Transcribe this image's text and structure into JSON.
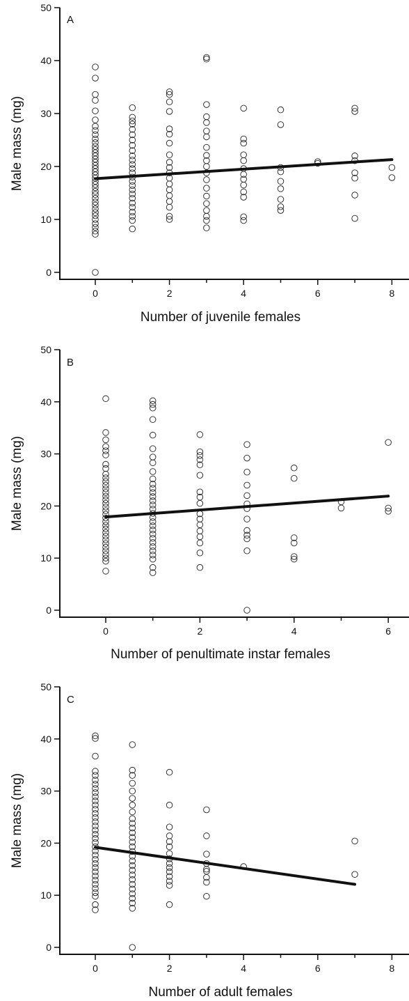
{
  "chart_data": [
    {
      "type": "scatter",
      "panel_label": "A",
      "xlabel": "Number of juvenile females",
      "ylabel": "Male mass (mg)",
      "xlim": [
        -1,
        8.5
      ],
      "ylim": [
        -1,
        50
      ],
      "xticks": [
        0,
        2,
        4,
        6,
        8
      ],
      "yticks": [
        0,
        10,
        20,
        30,
        40,
        50
      ],
      "grid": false,
      "points": [
        [
          0,
          0
        ],
        [
          0,
          7.2
        ],
        [
          0,
          7.8
        ],
        [
          0,
          8.5
        ],
        [
          0,
          9.2
        ],
        [
          0,
          10
        ],
        [
          0,
          10.7
        ],
        [
          0,
          11.3
        ],
        [
          0,
          12
        ],
        [
          0,
          12.7
        ],
        [
          0,
          13.3
        ],
        [
          0,
          14
        ],
        [
          0,
          14.7
        ],
        [
          0,
          15.3
        ],
        [
          0,
          16
        ],
        [
          0,
          16.6
        ],
        [
          0,
          17.2
        ],
        [
          0,
          17.8
        ],
        [
          0,
          18.4
        ],
        [
          0,
          19
        ],
        [
          0,
          19.6
        ],
        [
          0,
          20.2
        ],
        [
          0,
          20.8
        ],
        [
          0,
          21.4
        ],
        [
          0,
          22
        ],
        [
          0,
          22.6
        ],
        [
          0,
          23.2
        ],
        [
          0,
          23.8
        ],
        [
          0,
          24.5
        ],
        [
          0,
          25.2
        ],
        [
          0,
          26
        ],
        [
          0,
          26.8
        ],
        [
          0,
          27.6
        ],
        [
          0,
          28.8
        ],
        [
          0,
          30.5
        ],
        [
          0,
          32.5
        ],
        [
          0,
          33.6
        ],
        [
          0,
          36.7
        ],
        [
          0,
          38.8
        ],
        [
          1,
          8.2
        ],
        [
          1,
          9.8
        ],
        [
          1,
          10.6
        ],
        [
          1,
          11.4
        ],
        [
          1,
          12.3
        ],
        [
          1,
          13.1
        ],
        [
          1,
          14
        ],
        [
          1,
          14.8
        ],
        [
          1,
          15.6
        ],
        [
          1,
          16.4
        ],
        [
          1,
          17.2
        ],
        [
          1,
          18
        ],
        [
          1,
          18.8
        ],
        [
          1,
          19.6
        ],
        [
          1,
          20.4
        ],
        [
          1,
          21.2
        ],
        [
          1,
          22
        ],
        [
          1,
          23
        ],
        [
          1,
          24
        ],
        [
          1,
          25
        ],
        [
          1,
          26
        ],
        [
          1,
          27
        ],
        [
          1,
          28
        ],
        [
          1,
          28.6
        ],
        [
          1,
          29.3
        ],
        [
          1,
          31.1
        ],
        [
          2,
          10
        ],
        [
          2,
          10.6
        ],
        [
          2,
          12.3
        ],
        [
          2,
          13.4
        ],
        [
          2,
          14.5
        ],
        [
          2,
          15.6
        ],
        [
          2,
          16.7
        ],
        [
          2,
          17.8
        ],
        [
          2,
          18.8
        ],
        [
          2,
          19.8
        ],
        [
          2,
          20.8
        ],
        [
          2,
          22.2
        ],
        [
          2,
          24.4
        ],
        [
          2,
          26.1
        ],
        [
          2,
          27.1
        ],
        [
          2,
          30.4
        ],
        [
          2,
          32.2
        ],
        [
          2,
          33.6
        ],
        [
          2,
          34.1
        ],
        [
          3,
          8.4
        ],
        [
          3,
          9.8
        ],
        [
          3,
          10.6
        ],
        [
          3,
          11.7
        ],
        [
          3,
          13
        ],
        [
          3,
          14.4
        ],
        [
          3,
          15.9
        ],
        [
          3,
          17.5
        ],
        [
          3,
          18.8
        ],
        [
          3,
          20
        ],
        [
          3,
          21.1
        ],
        [
          3,
          22.1
        ],
        [
          3,
          23.6
        ],
        [
          3,
          25.6
        ],
        [
          3,
          26.7
        ],
        [
          3,
          28.3
        ],
        [
          3,
          29.4
        ],
        [
          3,
          31.7
        ],
        [
          3,
          40.3
        ],
        [
          3,
          40.6
        ],
        [
          4,
          9.8
        ],
        [
          4,
          10.5
        ],
        [
          4,
          14.2
        ],
        [
          4,
          15.2
        ],
        [
          4,
          16.5
        ],
        [
          4,
          17.6
        ],
        [
          4,
          18.5
        ],
        [
          4,
          19.6
        ],
        [
          4,
          21.1
        ],
        [
          4,
          22.2
        ],
        [
          4,
          24.4
        ],
        [
          4,
          25.2
        ],
        [
          4,
          31
        ],
        [
          5,
          11.7
        ],
        [
          5,
          12.4
        ],
        [
          5,
          13.8
        ],
        [
          5,
          15.8
        ],
        [
          5,
          17.2
        ],
        [
          5,
          19
        ],
        [
          5,
          19.8
        ],
        [
          5,
          27.9
        ],
        [
          5,
          30.7
        ],
        [
          6,
          20.6
        ],
        [
          6,
          20.9
        ],
        [
          7,
          10.2
        ],
        [
          7,
          14.6
        ],
        [
          7,
          17.8
        ],
        [
          7,
          18.8
        ],
        [
          7,
          21.1
        ],
        [
          7,
          22
        ],
        [
          7,
          30.4
        ],
        [
          7,
          31
        ],
        [
          8,
          17.9
        ],
        [
          8,
          19.8
        ]
      ],
      "fit": {
        "x": [
          0,
          8
        ],
        "y": [
          17.7,
          21.3
        ]
      }
    },
    {
      "type": "scatter",
      "panel_label": "B",
      "xlabel": "Number of penultimate instar females",
      "ylabel": "Male mass (mg)",
      "xlim": [
        -1,
        6.5
      ],
      "ylim": [
        -1,
        50
      ],
      "xticks": [
        0,
        2,
        4,
        6
      ],
      "yticks": [
        0,
        10,
        20,
        30,
        40,
        50
      ],
      "grid": false,
      "points": [
        [
          0,
          7.5
        ],
        [
          0,
          9.4
        ],
        [
          0,
          10
        ],
        [
          0,
          10.7
        ],
        [
          0,
          11.4
        ],
        [
          0,
          12.1
        ],
        [
          0,
          12.8
        ],
        [
          0,
          13.5
        ],
        [
          0,
          14.2
        ],
        [
          0,
          14.9
        ],
        [
          0,
          15.6
        ],
        [
          0,
          16.3
        ],
        [
          0,
          17
        ],
        [
          0,
          17.7
        ],
        [
          0,
          18.4
        ],
        [
          0,
          19.1
        ],
        [
          0,
          19.8
        ],
        [
          0,
          20.5
        ],
        [
          0,
          21.2
        ],
        [
          0,
          21.9
        ],
        [
          0,
          22.6
        ],
        [
          0,
          23.3
        ],
        [
          0,
          24
        ],
        [
          0,
          24.7
        ],
        [
          0,
          25.4
        ],
        [
          0,
          26.1
        ],
        [
          0,
          27.2
        ],
        [
          0,
          28
        ],
        [
          0,
          29.8
        ],
        [
          0,
          30.6
        ],
        [
          0,
          31.4
        ],
        [
          0,
          32.7
        ],
        [
          0,
          34.1
        ],
        [
          0,
          40.6
        ],
        [
          1,
          7.2
        ],
        [
          1,
          8.2
        ],
        [
          1,
          9.8
        ],
        [
          1,
          10.6
        ],
        [
          1,
          11.4
        ],
        [
          1,
          12.2
        ],
        [
          1,
          13
        ],
        [
          1,
          13.8
        ],
        [
          1,
          14.6
        ],
        [
          1,
          15.4
        ],
        [
          1,
          16.2
        ],
        [
          1,
          17
        ],
        [
          1,
          17.8
        ],
        [
          1,
          18.6
        ],
        [
          1,
          19.4
        ],
        [
          1,
          20.2
        ],
        [
          1,
          21
        ],
        [
          1,
          21.8
        ],
        [
          1,
          22.6
        ],
        [
          1,
          23.4
        ],
        [
          1,
          24.2
        ],
        [
          1,
          25.2
        ],
        [
          1,
          26.6
        ],
        [
          1,
          28.3
        ],
        [
          1,
          29.4
        ],
        [
          1,
          31
        ],
        [
          1,
          33.6
        ],
        [
          1,
          36.6
        ],
        [
          1,
          38.8
        ],
        [
          1,
          39.5
        ],
        [
          1,
          40.2
        ],
        [
          2,
          8.2
        ],
        [
          2,
          11
        ],
        [
          2,
          12.9
        ],
        [
          2,
          14.1
        ],
        [
          2,
          15.2
        ],
        [
          2,
          16.4
        ],
        [
          2,
          17.5
        ],
        [
          2,
          18.5
        ],
        [
          2,
          20.5
        ],
        [
          2,
          21.7
        ],
        [
          2,
          22.7
        ],
        [
          2,
          25.9
        ],
        [
          2,
          27.9
        ],
        [
          2,
          28.9
        ],
        [
          2,
          29.7
        ],
        [
          2,
          30.4
        ],
        [
          2,
          33.7
        ],
        [
          3,
          0
        ],
        [
          3,
          11.4
        ],
        [
          3,
          13.7
        ],
        [
          3,
          14.4
        ],
        [
          3,
          15.3
        ],
        [
          3,
          17.5
        ],
        [
          3,
          19.5
        ],
        [
          3,
          20.4
        ],
        [
          3,
          22
        ],
        [
          3,
          24
        ],
        [
          3,
          26.5
        ],
        [
          3,
          29.2
        ],
        [
          3,
          31.8
        ],
        [
          4,
          9.8
        ],
        [
          4,
          10.3
        ],
        [
          4,
          12.9
        ],
        [
          4,
          13.9
        ],
        [
          4,
          25.3
        ],
        [
          4,
          27.3
        ],
        [
          5,
          19.6
        ],
        [
          5,
          20.8
        ],
        [
          6,
          19
        ],
        [
          6,
          19.6
        ],
        [
          6,
          32.2
        ]
      ],
      "fit": {
        "x": [
          0,
          6
        ],
        "y": [
          17.9,
          21.9
        ]
      }
    },
    {
      "type": "scatter",
      "panel_label": "C",
      "xlabel": "Number of adult females",
      "ylabel": "Male mass (mg)",
      "xlim": [
        -1,
        8.5
      ],
      "ylim": [
        -1,
        50
      ],
      "xticks": [
        0,
        2,
        4,
        6,
        8
      ],
      "yticks": [
        0,
        10,
        20,
        30,
        40,
        50
      ],
      "grid": false,
      "points": [
        [
          0,
          7.2
        ],
        [
          0,
          8.2
        ],
        [
          0,
          9.8
        ],
        [
          0,
          10.5
        ],
        [
          0,
          11.3
        ],
        [
          0,
          12.1
        ],
        [
          0,
          12.9
        ],
        [
          0,
          13.7
        ],
        [
          0,
          14.5
        ],
        [
          0,
          15.3
        ],
        [
          0,
          16.1
        ],
        [
          0,
          16.9
        ],
        [
          0,
          17.7
        ],
        [
          0,
          18.5
        ],
        [
          0,
          19.3
        ],
        [
          0,
          20.1
        ],
        [
          0,
          20.9
        ],
        [
          0,
          21.7
        ],
        [
          0,
          22.5
        ],
        [
          0,
          23.3
        ],
        [
          0,
          24.1
        ],
        [
          0,
          24.9
        ],
        [
          0,
          25.7
        ],
        [
          0,
          26.5
        ],
        [
          0,
          27.3
        ],
        [
          0,
          28.1
        ],
        [
          0,
          28.9
        ],
        [
          0,
          29.7
        ],
        [
          0,
          30.5
        ],
        [
          0,
          31.3
        ],
        [
          0,
          32.1
        ],
        [
          0,
          33
        ],
        [
          0,
          33.8
        ],
        [
          0,
          36.7
        ],
        [
          0,
          40.1
        ],
        [
          0,
          40.6
        ],
        [
          1,
          0
        ],
        [
          1,
          7.5
        ],
        [
          1,
          8.5
        ],
        [
          1,
          9.4
        ],
        [
          1,
          10.3
        ],
        [
          1,
          11.2
        ],
        [
          1,
          12.1
        ],
        [
          1,
          13
        ],
        [
          1,
          13.9
        ],
        [
          1,
          14.8
        ],
        [
          1,
          15.7
        ],
        [
          1,
          16.6
        ],
        [
          1,
          17.5
        ],
        [
          1,
          18.4
        ],
        [
          1,
          19.3
        ],
        [
          1,
          20.2
        ],
        [
          1,
          21.1
        ],
        [
          1,
          22
        ],
        [
          1,
          22.9
        ],
        [
          1,
          23.8
        ],
        [
          1,
          24.7
        ],
        [
          1,
          26
        ],
        [
          1,
          27.3
        ],
        [
          1,
          28.6
        ],
        [
          1,
          30
        ],
        [
          1,
          31.5
        ],
        [
          1,
          33
        ],
        [
          1,
          34
        ],
        [
          1,
          38.9
        ],
        [
          2,
          8.2
        ],
        [
          2,
          11.9
        ],
        [
          2,
          12.7
        ],
        [
          2,
          13.6
        ],
        [
          2,
          14.5
        ],
        [
          2,
          15.3
        ],
        [
          2,
          16.1
        ],
        [
          2,
          17
        ],
        [
          2,
          18
        ],
        [
          2,
          19.3
        ],
        [
          2,
          20.3
        ],
        [
          2,
          21.4
        ],
        [
          2,
          23.1
        ],
        [
          2,
          27.3
        ],
        [
          2,
          33.6
        ],
        [
          3,
          9.8
        ],
        [
          3,
          12.5
        ],
        [
          3,
          13.4
        ],
        [
          3,
          14.6
        ],
        [
          3,
          15
        ],
        [
          3,
          16.1
        ],
        [
          3,
          17.9
        ],
        [
          3,
          21.4
        ],
        [
          3,
          26.4
        ],
        [
          4,
          15.5
        ],
        [
          7,
          14
        ],
        [
          7,
          20.4
        ]
      ],
      "fit": {
        "x": [
          0,
          7
        ],
        "y": [
          19.2,
          12.1
        ]
      }
    }
  ]
}
